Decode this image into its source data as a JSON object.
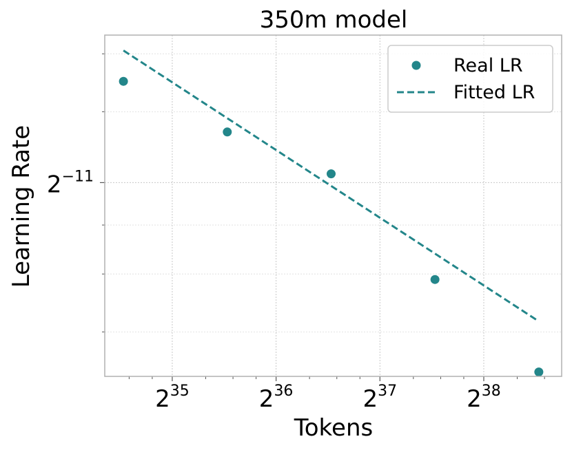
{
  "chart_data": {
    "type": "scatter",
    "title": "350m model",
    "xlabel": "Tokens",
    "ylabel": "Learning Rate",
    "x_scale": "log2",
    "y_scale": "log2",
    "x_ticks": [
      {
        "base": "2",
        "exp": "35",
        "value": 35
      },
      {
        "base": "2",
        "exp": "36",
        "value": 36
      },
      {
        "base": "2",
        "exp": "37",
        "value": 37
      },
      {
        "base": "2",
        "exp": "38",
        "value": 38
      }
    ],
    "y_ticks": [
      {
        "base": "2",
        "exp": "−11",
        "value": -11
      }
    ],
    "xlim_log2": [
      34.35,
      38.75
    ],
    "ylim_log2": [
      -11.88,
      -10.33
    ],
    "grid": true,
    "legend_position": "top-right",
    "color": "#23868a",
    "series": [
      {
        "name": "Real LR",
        "kind": "scatter",
        "log2_x": [
          34.53,
          35.53,
          36.53,
          37.53,
          38.53
        ],
        "log2_y": [
          -10.54,
          -10.77,
          -10.96,
          -11.44,
          -11.86
        ]
      },
      {
        "name": "Fitted LR",
        "kind": "dashed-line",
        "log2_x": [
          34.53,
          38.53
        ],
        "log2_y": [
          -10.4,
          -11.63
        ]
      }
    ]
  }
}
